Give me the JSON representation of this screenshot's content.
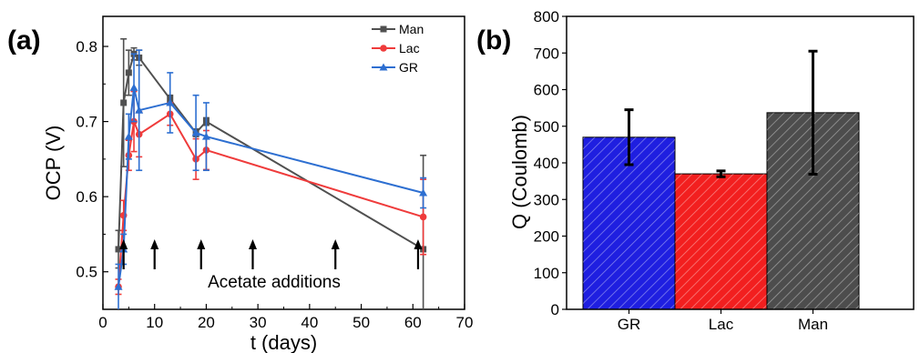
{
  "panels": {
    "a": "(a)",
    "b": "(b)"
  },
  "chart_data": [
    {
      "type": "line",
      "xlabel": "t (days)",
      "ylabel": "OCP (V)",
      "xlim": [
        0,
        70
      ],
      "ylim": [
        0.45,
        0.84
      ],
      "xticks": [
        0,
        10,
        20,
        30,
        40,
        50,
        60,
        70
      ],
      "yticks": [
        0.5,
        0.6,
        0.7,
        0.8
      ],
      "grid": false,
      "legend_position": "top-right",
      "series": [
        {
          "name": "Man",
          "color": "#505050",
          "marker": "square",
          "x": [
            3,
            4,
            5,
            6,
            7,
            13,
            18,
            20,
            62
          ],
          "y": [
            0.53,
            0.725,
            0.765,
            0.79,
            0.785,
            0.73,
            0.685,
            0.7,
            0.53
          ],
          "err": [
            0.025,
            0.085,
            0.03,
            0.008,
            0.01,
            0.005,
            0.005,
            0.005,
            0.125
          ]
        },
        {
          "name": "Lac",
          "color": "#ef3b3b",
          "marker": "circle",
          "x": [
            3,
            4,
            5,
            6,
            7,
            13,
            18,
            20,
            62
          ],
          "y": [
            0.48,
            0.575,
            0.655,
            0.7,
            0.683,
            0.71,
            0.65,
            0.662,
            0.573
          ],
          "err": [
            0.01,
            0.02,
            0.02,
            0.04,
            0.03,
            0.015,
            0.027,
            0.026,
            0.05
          ]
        },
        {
          "name": "GR",
          "color": "#2d6fd1",
          "marker": "triangle",
          "x": [
            3,
            4,
            5,
            6,
            7,
            13,
            18,
            20,
            62
          ],
          "y": [
            0.48,
            0.53,
            0.68,
            0.745,
            0.715,
            0.725,
            0.685,
            0.68,
            0.605
          ],
          "err": [
            0.03,
            0.02,
            0.03,
            0.045,
            0.08,
            0.04,
            0.05,
            0.045,
            0.02
          ]
        }
      ],
      "annotations": {
        "text": "Acetate additions",
        "arrow_x": [
          4,
          10,
          19,
          29,
          45,
          61
        ]
      }
    },
    {
      "type": "bar",
      "ylabel": "Q (Coulomb)",
      "xlabel": "",
      "ylim": [
        0,
        800
      ],
      "yticks": [
        0,
        100,
        200,
        300,
        400,
        500,
        600,
        700,
        800
      ],
      "categories": [
        "GR",
        "Lac",
        "Man"
      ],
      "values": [
        470,
        370,
        537
      ],
      "err": [
        75,
        8,
        168
      ],
      "colors": [
        "#1f1fe0",
        "#f21f1f",
        "#4d4d4d"
      ],
      "hatch": true
    }
  ]
}
